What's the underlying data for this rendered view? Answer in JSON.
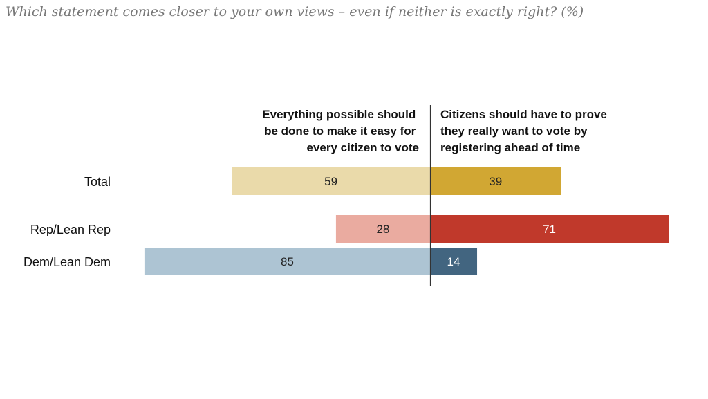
{
  "chart_data": {
    "type": "bar",
    "orientation": "diverging-horizontal",
    "subtitle": "Which statement comes closer to your own views – even if neither is exactly right? (%)",
    "left_header": [
      "Everything possible should",
      "be done to make it easy for",
      "every citizen to vote"
    ],
    "right_header": [
      "Citizens should have to prove",
      "they really want to vote by",
      "registering ahead of time"
    ],
    "rows": [
      {
        "label": "Total",
        "left": 59,
        "right": 39,
        "left_color": "#eadaaa",
        "right_color": "#d1a733",
        "left_text": "#222222",
        "right_text": "#222222"
      },
      {
        "label": "Rep/Lean Rep",
        "left": 28,
        "right": 71,
        "left_color": "#eaaba0",
        "right_color": "#c0392b",
        "left_text": "#222222",
        "right_text": "#ffffff"
      },
      {
        "label": "Dem/Lean Dem",
        "left": 85,
        "right": 14,
        "left_color": "#adc4d3",
        "right_color": "#426580",
        "left_text": "#222222",
        "right_text": "#ffffff"
      }
    ]
  }
}
